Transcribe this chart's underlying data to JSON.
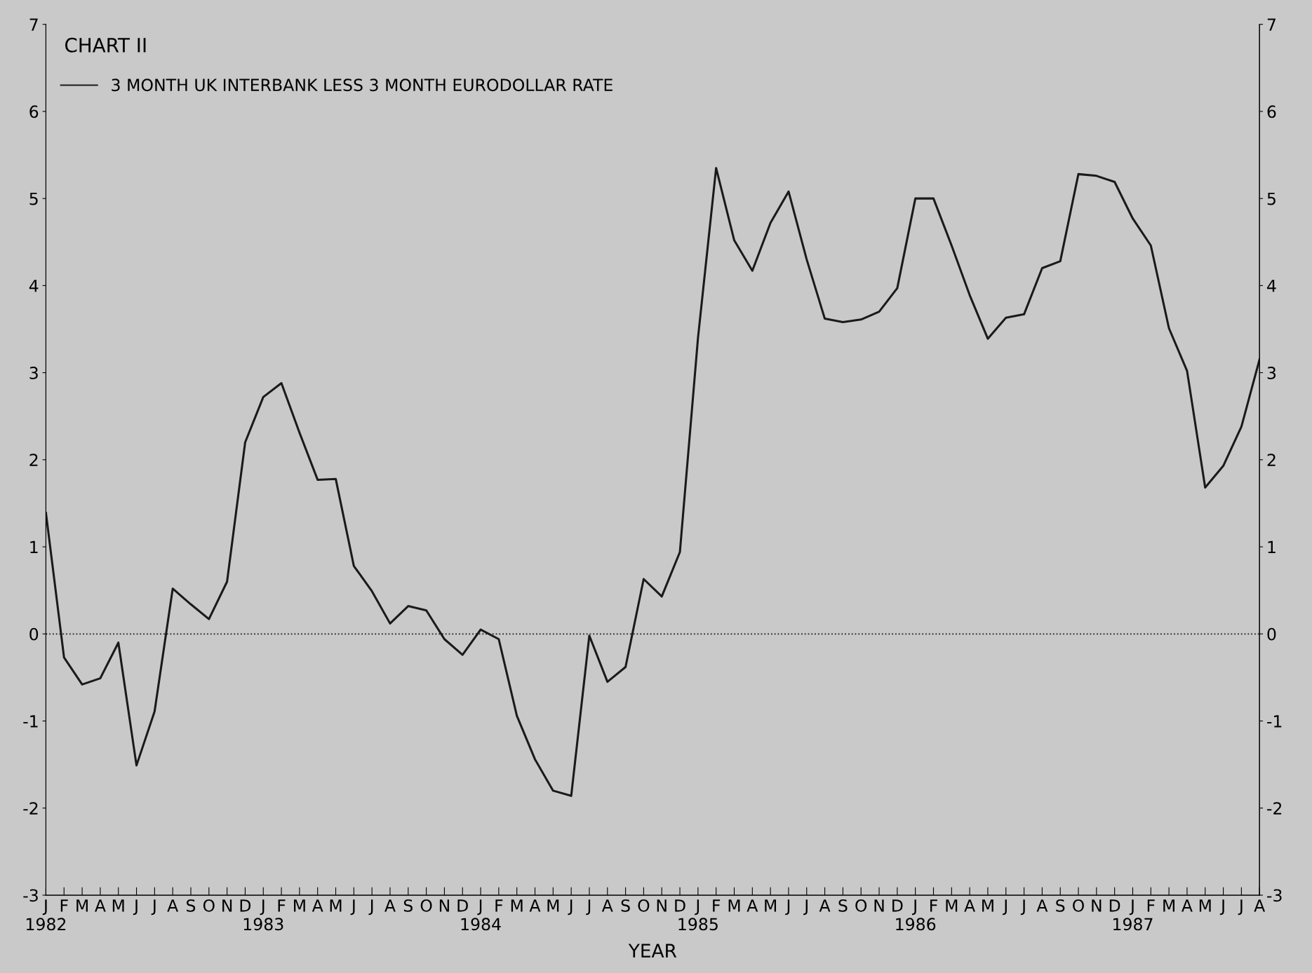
{
  "chart_data": {
    "type": "line",
    "title": "CHART II",
    "xlabel": "YEAR",
    "categories": [
      "J\n1982",
      "F",
      "M",
      "A",
      "M",
      "J",
      "J",
      "A",
      "S",
      "O",
      "N",
      "D",
      "J\n1983",
      "F",
      "M",
      "A",
      "M",
      "J",
      "J",
      "A",
      "S",
      "O",
      "N",
      "D",
      "J\n1984",
      "F",
      "M",
      "A",
      "M",
      "J",
      "J",
      "A",
      "S",
      "O",
      "N",
      "D",
      "J\n1985",
      "F",
      "M",
      "A",
      "M",
      "J",
      "J",
      "A",
      "S",
      "O",
      "N",
      "D",
      "J\n1986",
      "F",
      "M",
      "A",
      "M",
      "J",
      "J",
      "A",
      "S",
      "O",
      "N",
      "D",
      "J\n1987",
      "F",
      "M",
      "A",
      "M",
      "J",
      "J",
      "A"
    ],
    "series": [
      {
        "name": "3 MONTH UK INTERBANK LESS 3 MONTH EURODOLLAR RATE",
        "color": "#1a1a1a",
        "values": [
          1.39,
          -0.27,
          -0.58,
          -0.51,
          -0.1,
          -1.51,
          -0.89,
          0.52,
          0.34,
          0.17,
          0.6,
          2.2,
          2.72,
          2.88,
          2.31,
          1.77,
          1.78,
          0.78,
          0.49,
          0.12,
          0.32,
          0.27,
          -0.06,
          -0.24,
          0.05,
          -0.06,
          -0.94,
          -1.44,
          -1.8,
          -1.86,
          -0.02,
          -0.55,
          -0.38,
          0.63,
          0.43,
          0.94,
          3.4,
          5.35,
          4.52,
          4.17,
          4.72,
          5.08,
          4.3,
          3.62,
          3.58,
          3.61,
          3.7,
          3.97,
          5.0,
          5.0,
          4.46,
          3.89,
          3.39,
          3.63,
          3.67,
          4.2,
          4.28,
          5.28,
          5.26,
          5.19,
          4.77,
          4.46,
          3.51,
          3.02,
          1.68,
          1.93,
          2.38,
          3.15
        ]
      }
    ],
    "ylim": [
      -3,
      7
    ],
    "yticks": [
      -3,
      -2,
      -1,
      0,
      1,
      2,
      3,
      4,
      5,
      6,
      7
    ],
    "y2lim": [
      -3,
      7
    ],
    "y2ticks": [
      -3,
      -2,
      -1,
      0,
      1,
      2,
      3,
      4,
      5,
      6,
      7
    ],
    "ref_lines": [
      {
        "axis": "y",
        "value": 0,
        "line_style": "dotted",
        "color": "#1a1a1a"
      }
    ],
    "grid": false,
    "legend": "top left",
    "marker": "none",
    "line_style": "solid"
  }
}
